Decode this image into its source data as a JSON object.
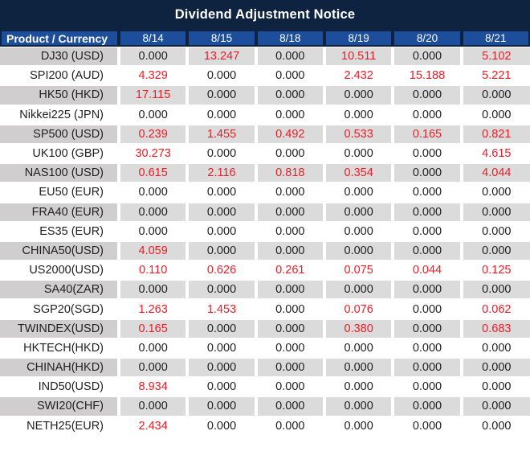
{
  "title": "Dividend Adjustment Notice",
  "colors": {
    "navy": "#0e2340",
    "header_blue": "#1d4e9b",
    "stripe_product_gray": "#d0cece",
    "stripe_value_gray": "#dbdbdb",
    "nonzero_red": "#ee1c25",
    "text_black": "#1f1f1f"
  },
  "table": {
    "product_header": "Product / Currency",
    "date_headers": [
      "8/14",
      "8/15",
      "8/18",
      "8/19",
      "8/20",
      "8/21"
    ],
    "zero_value": "0.000",
    "rows": [
      {
        "product": "DJ30 (USD)",
        "values": [
          "0.000",
          "13.247",
          "0.000",
          "10.511",
          "0.000",
          "5.102"
        ]
      },
      {
        "product": "SPI200 (AUD)",
        "values": [
          "4.329",
          "0.000",
          "0.000",
          "2.432",
          "15.188",
          "5.221"
        ]
      },
      {
        "product": "HK50 (HKD)",
        "values": [
          "17.115",
          "0.000",
          "0.000",
          "0.000",
          "0.000",
          "0.000"
        ]
      },
      {
        "product": "Nikkei225 (JPN)",
        "values": [
          "0.000",
          "0.000",
          "0.000",
          "0.000",
          "0.000",
          "0.000"
        ]
      },
      {
        "product": "SP500 (USD)",
        "values": [
          "0.239",
          "1.455",
          "0.492",
          "0.533",
          "0.165",
          "0.821"
        ]
      },
      {
        "product": "UK100 (GBP)",
        "values": [
          "30.273",
          "0.000",
          "0.000",
          "0.000",
          "0.000",
          "4.615"
        ]
      },
      {
        "product": "NAS100 (USD)",
        "values": [
          "0.615",
          "2.116",
          "0.818",
          "0.354",
          "0.000",
          "4.044"
        ]
      },
      {
        "product": "EU50 (EUR)",
        "values": [
          "0.000",
          "0.000",
          "0.000",
          "0.000",
          "0.000",
          "0.000"
        ]
      },
      {
        "product": "FRA40 (EUR)",
        "values": [
          "0.000",
          "0.000",
          "0.000",
          "0.000",
          "0.000",
          "0.000"
        ]
      },
      {
        "product": "ES35 (EUR)",
        "values": [
          "0.000",
          "0.000",
          "0.000",
          "0.000",
          "0.000",
          "0.000"
        ]
      },
      {
        "product": "CHINA50(USD)",
        "values": [
          "4.059",
          "0.000",
          "0.000",
          "0.000",
          "0.000",
          "0.000"
        ]
      },
      {
        "product": "US2000(USD)",
        "values": [
          "0.110",
          "0.626",
          "0.261",
          "0.075",
          "0.044",
          "0.125"
        ]
      },
      {
        "product": "SA40(ZAR)",
        "values": [
          "0.000",
          "0.000",
          "0.000",
          "0.000",
          "0.000",
          "0.000"
        ]
      },
      {
        "product": "SGP20(SGD)",
        "values": [
          "1.263",
          "1.453",
          "0.000",
          "0.076",
          "0.000",
          "0.062"
        ]
      },
      {
        "product": "TWINDEX(USD)",
        "values": [
          "0.165",
          "0.000",
          "0.000",
          "0.380",
          "0.000",
          "0.683"
        ]
      },
      {
        "product": "HKTECH(HKD)",
        "values": [
          "0.000",
          "0.000",
          "0.000",
          "0.000",
          "0.000",
          "0.000"
        ]
      },
      {
        "product": "CHINAH(HKD)",
        "values": [
          "0.000",
          "0.000",
          "0.000",
          "0.000",
          "0.000",
          "0.000"
        ]
      },
      {
        "product": "IND50(USD)",
        "values": [
          "8.934",
          "0.000",
          "0.000",
          "0.000",
          "0.000",
          "0.000"
        ]
      },
      {
        "product": "SWI20(CHF)",
        "values": [
          "0.000",
          "0.000",
          "0.000",
          "0.000",
          "0.000",
          "0.000"
        ]
      },
      {
        "product": "NETH25(EUR)",
        "values": [
          "2.434",
          "0.000",
          "0.000",
          "0.000",
          "0.000",
          "0.000"
        ]
      }
    ]
  }
}
